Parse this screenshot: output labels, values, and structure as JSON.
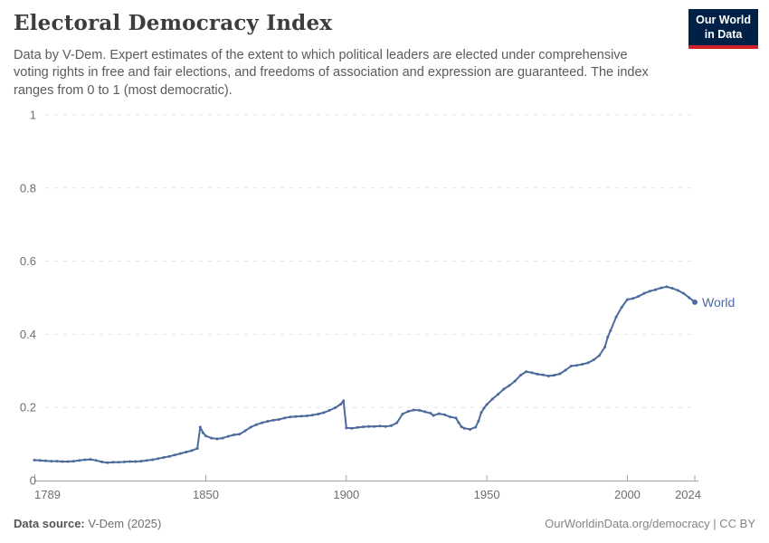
{
  "header": {
    "title": "Electoral Democracy Index",
    "logo": {
      "line1": "Our World",
      "line2": "in Data",
      "bg": "#002147",
      "accent": "#cf2126"
    }
  },
  "subtitle_lines": {
    "l1": "Data by V-Dem. Expert estimates of the extent to which political leaders are elected under comprehensive",
    "l2": "voting rights in free and fair elections, and freedoms of association and expression are guaranteed. The index",
    "l3": "ranges from 0 to 1 (most democratic)."
  },
  "footer": {
    "source_label": "Data source:",
    "source_value": " V-Dem (2025)",
    "right": "OurWorldinData.org/democracy | CC BY"
  },
  "chart_data": {
    "type": "line",
    "title": "Electoral Democracy Index",
    "xlabel": "",
    "ylabel": "",
    "xlim": [
      1789,
      2024
    ],
    "ylim": [
      0,
      1
    ],
    "x_ticks": [
      1789,
      1850,
      1900,
      1950,
      2000,
      2024
    ],
    "y_ticks": [
      0,
      0.2,
      0.4,
      0.6,
      0.8,
      1
    ],
    "grid": "horizontal-dashed",
    "legend_position": "end-of-line",
    "colors": {
      "grid": "#e2e2e2",
      "axis": "#a3a3a3",
      "tick_label": "#6e6e6e"
    },
    "series": [
      {
        "name": "World",
        "color": "#4C6A9C",
        "points": [
          [
            1789,
            0.056
          ],
          [
            1791,
            0.055
          ],
          [
            1793,
            0.054
          ],
          [
            1795,
            0.053
          ],
          [
            1797,
            0.053
          ],
          [
            1799,
            0.052
          ],
          [
            1801,
            0.052
          ],
          [
            1803,
            0.053
          ],
          [
            1805,
            0.055
          ],
          [
            1807,
            0.057
          ],
          [
            1809,
            0.058
          ],
          [
            1811,
            0.055
          ],
          [
            1813,
            0.051
          ],
          [
            1815,
            0.049
          ],
          [
            1817,
            0.05
          ],
          [
            1819,
            0.05
          ],
          [
            1821,
            0.051
          ],
          [
            1823,
            0.052
          ],
          [
            1825,
            0.052
          ],
          [
            1827,
            0.053
          ],
          [
            1829,
            0.055
          ],
          [
            1831,
            0.057
          ],
          [
            1833,
            0.06
          ],
          [
            1835,
            0.063
          ],
          [
            1837,
            0.066
          ],
          [
            1839,
            0.07
          ],
          [
            1841,
            0.074
          ],
          [
            1843,
            0.078
          ],
          [
            1845,
            0.082
          ],
          [
            1847,
            0.088
          ],
          [
            1848,
            0.146
          ],
          [
            1849,
            0.131
          ],
          [
            1850,
            0.122
          ],
          [
            1852,
            0.116
          ],
          [
            1854,
            0.114
          ],
          [
            1856,
            0.116
          ],
          [
            1858,
            0.121
          ],
          [
            1860,
            0.125
          ],
          [
            1862,
            0.127
          ],
          [
            1864,
            0.136
          ],
          [
            1866,
            0.146
          ],
          [
            1868,
            0.153
          ],
          [
            1870,
            0.158
          ],
          [
            1872,
            0.162
          ],
          [
            1874,
            0.165
          ],
          [
            1876,
            0.167
          ],
          [
            1878,
            0.171
          ],
          [
            1880,
            0.174
          ],
          [
            1882,
            0.175
          ],
          [
            1884,
            0.176
          ],
          [
            1886,
            0.177
          ],
          [
            1888,
            0.179
          ],
          [
            1890,
            0.182
          ],
          [
            1892,
            0.186
          ],
          [
            1894,
            0.192
          ],
          [
            1896,
            0.199
          ],
          [
            1898,
            0.209
          ],
          [
            1899,
            0.218
          ],
          [
            1900,
            0.144
          ],
          [
            1902,
            0.143
          ],
          [
            1904,
            0.145
          ],
          [
            1906,
            0.147
          ],
          [
            1908,
            0.148
          ],
          [
            1910,
            0.148
          ],
          [
            1912,
            0.149
          ],
          [
            1914,
            0.148
          ],
          [
            1916,
            0.15
          ],
          [
            1918,
            0.158
          ],
          [
            1920,
            0.182
          ],
          [
            1922,
            0.189
          ],
          [
            1924,
            0.193
          ],
          [
            1926,
            0.192
          ],
          [
            1928,
            0.188
          ],
          [
            1930,
            0.184
          ],
          [
            1931,
            0.178
          ],
          [
            1933,
            0.183
          ],
          [
            1935,
            0.18
          ],
          [
            1937,
            0.174
          ],
          [
            1939,
            0.171
          ],
          [
            1940,
            0.158
          ],
          [
            1941,
            0.147
          ],
          [
            1942,
            0.143
          ],
          [
            1944,
            0.14
          ],
          [
            1946,
            0.146
          ],
          [
            1947,
            0.162
          ],
          [
            1948,
            0.186
          ],
          [
            1949,
            0.198
          ],
          [
            1950,
            0.208
          ],
          [
            1952,
            0.223
          ],
          [
            1954,
            0.236
          ],
          [
            1956,
            0.25
          ],
          [
            1958,
            0.26
          ],
          [
            1960,
            0.272
          ],
          [
            1962,
            0.288
          ],
          [
            1964,
            0.298
          ],
          [
            1966,
            0.295
          ],
          [
            1968,
            0.291
          ],
          [
            1970,
            0.289
          ],
          [
            1972,
            0.286
          ],
          [
            1974,
            0.288
          ],
          [
            1976,
            0.292
          ],
          [
            1978,
            0.302
          ],
          [
            1980,
            0.313
          ],
          [
            1982,
            0.315
          ],
          [
            1984,
            0.318
          ],
          [
            1986,
            0.322
          ],
          [
            1988,
            0.33
          ],
          [
            1990,
            0.342
          ],
          [
            1992,
            0.365
          ],
          [
            1993,
            0.392
          ],
          [
            1994,
            0.41
          ],
          [
            1996,
            0.447
          ],
          [
            1998,
            0.474
          ],
          [
            2000,
            0.495
          ],
          [
            2002,
            0.498
          ],
          [
            2004,
            0.504
          ],
          [
            2006,
            0.512
          ],
          [
            2008,
            0.518
          ],
          [
            2010,
            0.522
          ],
          [
            2012,
            0.527
          ],
          [
            2014,
            0.53
          ],
          [
            2016,
            0.526
          ],
          [
            2018,
            0.52
          ],
          [
            2020,
            0.512
          ],
          [
            2022,
            0.5
          ],
          [
            2024,
            0.488
          ]
        ]
      }
    ]
  }
}
